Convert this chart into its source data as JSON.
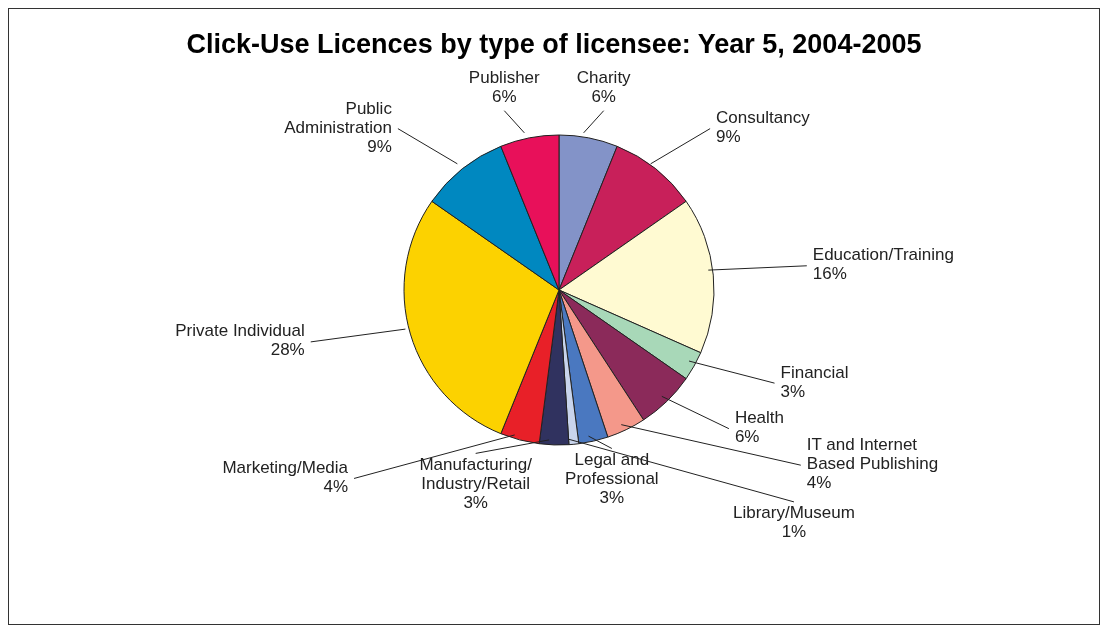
{
  "chart_data": {
    "type": "pie",
    "title": "Click-Use Licences by type of licensee: Year 5, 2004-2005",
    "categories": [
      "Charity",
      "Consultancy",
      "Education/Training",
      "Financial",
      "Health",
      "IT and Internet Based Publishing",
      "Legal and Professional",
      "Library/Museum",
      "Manufacturing/Industry/Retail",
      "Marketing/Media",
      "Private Individual",
      "Public Administration",
      "Publisher"
    ],
    "values": [
      6,
      9,
      16,
      3,
      6,
      4,
      3,
      1,
      3,
      4,
      28,
      9,
      6
    ],
    "value_labels": [
      "6%",
      "9%",
      "16%",
      "3%",
      "6%",
      "4%",
      "3%",
      "1%",
      "3%",
      "4%",
      "28%",
      "9%",
      "6%"
    ],
    "colors": [
      "#8393c8",
      "#c8205a",
      "#fffad2",
      "#a8d8b8",
      "#8b2a5a",
      "#f4988a",
      "#4a78c0",
      "#c8d4ec",
      "#30325f",
      "#e82028",
      "#fcd200",
      "#0088c0",
      "#e8105a"
    ]
  }
}
